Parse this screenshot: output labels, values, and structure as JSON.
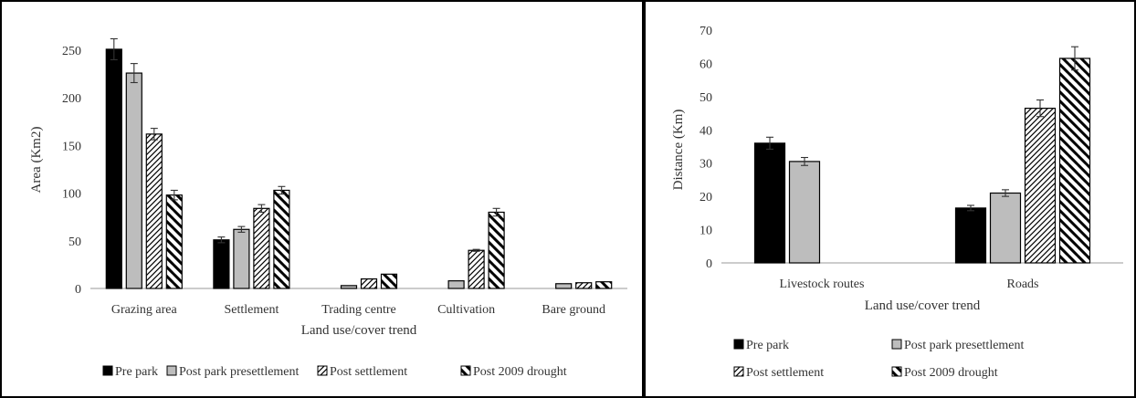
{
  "chart_data": [
    {
      "type": "bar",
      "title": "",
      "xlabel": "Land use/cover trend",
      "ylabel": "Area (Km2)",
      "ylim": [
        0,
        250
      ],
      "yticks": [
        0,
        50,
        100,
        150,
        200,
        250
      ],
      "grid": false,
      "legend": "bottom",
      "categories": [
        "Grazing area",
        "Settlement",
        "Trading centre",
        "Cultivation",
        "Bare ground"
      ],
      "series": [
        {
          "name": "Pre park",
          "values": [
            251,
            51,
            0,
            0,
            0
          ],
          "errors": [
            11,
            3,
            0,
            0,
            0
          ],
          "pattern": "solid-black"
        },
        {
          "name": "Post park presettlement",
          "values": [
            226,
            62,
            3,
            8,
            5
          ],
          "errors": [
            10,
            3,
            0,
            0,
            0
          ],
          "pattern": "solid-gray"
        },
        {
          "name": "Post settlement",
          "values": [
            162,
            84,
            10,
            40,
            6
          ],
          "errors": [
            6,
            4,
            0,
            1,
            0
          ],
          "pattern": "forward-hatch"
        },
        {
          "name": "Post 2009 drought",
          "values": [
            98,
            103,
            15,
            80,
            7
          ],
          "errors": [
            5,
            4,
            0,
            4,
            0
          ],
          "pattern": "back-hatch"
        }
      ]
    },
    {
      "type": "bar",
      "title": "",
      "xlabel": "Land use/cover trend",
      "ylabel": "Distance (Km)",
      "ylim": [
        0,
        70
      ],
      "yticks": [
        0,
        10,
        20,
        30,
        40,
        50,
        60,
        70
      ],
      "grid": false,
      "legend": "bottom",
      "categories": [
        "Livestock routes",
        "Roads"
      ],
      "series": [
        {
          "name": "Pre park",
          "values": [
            36,
            16.5
          ],
          "errors": [
            1.8,
            0.8
          ],
          "pattern": "solid-black"
        },
        {
          "name": "Post park presettlement",
          "values": [
            30.5,
            21
          ],
          "errors": [
            1.2,
            1
          ],
          "pattern": "solid-gray"
        },
        {
          "name": "Post settlement",
          "values": [
            0,
            46.5
          ],
          "errors": [
            0,
            2.5
          ],
          "pattern": "forward-hatch"
        },
        {
          "name": "Post 2009 drought",
          "values": [
            0,
            61.5
          ],
          "errors": [
            0,
            3.5
          ],
          "pattern": "back-hatch"
        }
      ]
    }
  ]
}
